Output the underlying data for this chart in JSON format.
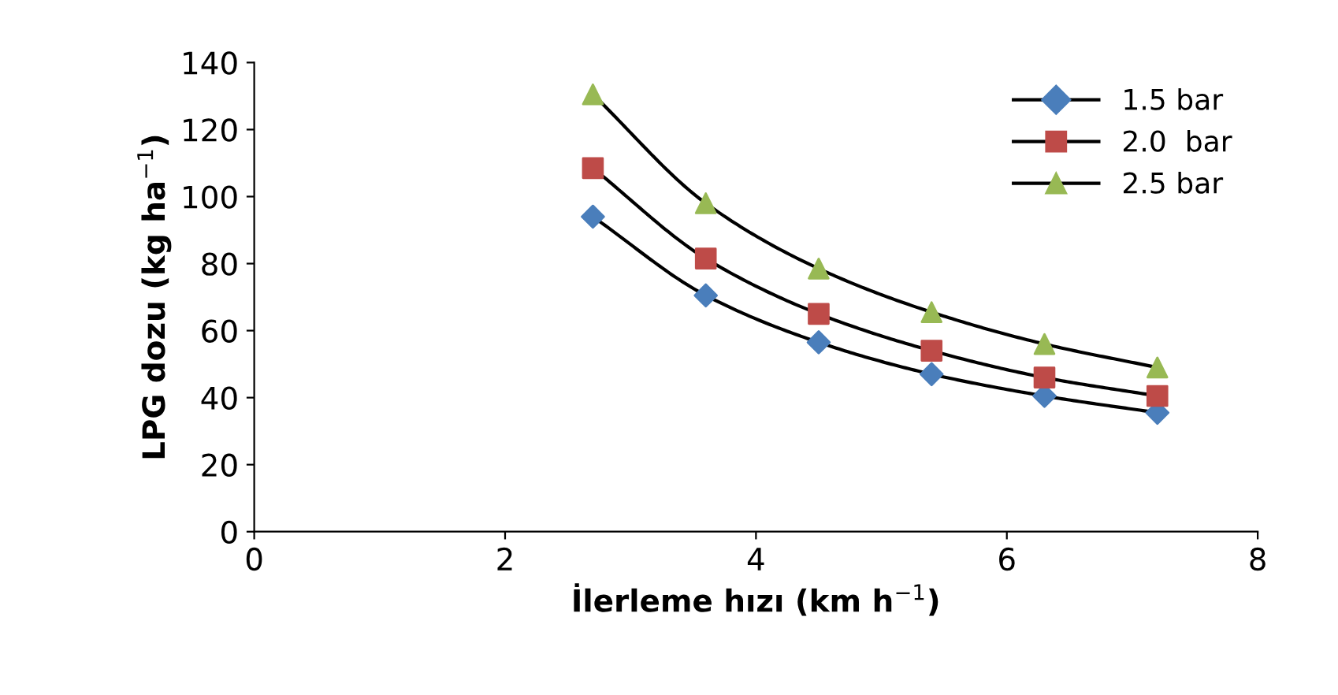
{
  "chart_data": {
    "type": "line",
    "xlabel": "İlerleme hızı (km h$^{−1}$)",
    "ylabel": "LPG dozu (kg ha$^{−1}$)",
    "x": [
      2.7,
      3.6,
      4.5,
      5.4,
      6.3,
      7.2
    ],
    "series": [
      {
        "name": "1.5 bar",
        "color": "#4a7ebb",
        "marker": "diamond",
        "values": [
          94,
          70.5,
          56.5,
          47,
          40.5,
          35.5
        ]
      },
      {
        "name": "2.0  bar",
        "color": "#be4b48",
        "marker": "square",
        "values": [
          108.5,
          81.5,
          65,
          54,
          46,
          40.5
        ]
      },
      {
        "name": "2.5 bar",
        "color": "#98b954",
        "marker": "triangle",
        "values": [
          130.5,
          98,
          78.5,
          65.5,
          56,
          49
        ]
      }
    ],
    "xlim": [
      0,
      8
    ],
    "xticks": [
      0,
      2,
      4,
      6,
      8
    ],
    "ylim": [
      0,
      140
    ],
    "yticks": [
      0,
      20,
      40,
      60,
      80,
      100,
      120,
      140
    ],
    "grid": false,
    "legend": "top right",
    "line_style": "solid"
  }
}
